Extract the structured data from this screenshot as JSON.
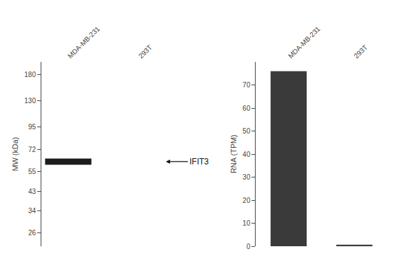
{
  "chart_data": [
    {
      "type": "scatter",
      "marker": "line-ew",
      "categories": [
        "MDA-MB-231",
        "293T"
      ],
      "values": [
        62,
        null
      ],
      "color": "#1c1c1c",
      "log": "y",
      "ylabel": "MW (kDa)",
      "ylim": [
        22,
        210
      ],
      "yticks": [
        180,
        130,
        95,
        72,
        55,
        43,
        34,
        26
      ],
      "annotations": [
        {
          "text": "IFIT3",
          "y": 62
        }
      ],
      "grid": false
    },
    {
      "type": "bar",
      "categories": [
        "MDA-MB-231",
        "293T"
      ],
      "values": [
        76.0,
        0.7
      ],
      "color": "#3a3a3a",
      "ylabel": "RNA (TPM)",
      "ylim": [
        0,
        80
      ],
      "yticks": [
        0,
        10,
        20,
        30,
        40,
        50,
        60,
        70
      ],
      "grid": false
    }
  ]
}
